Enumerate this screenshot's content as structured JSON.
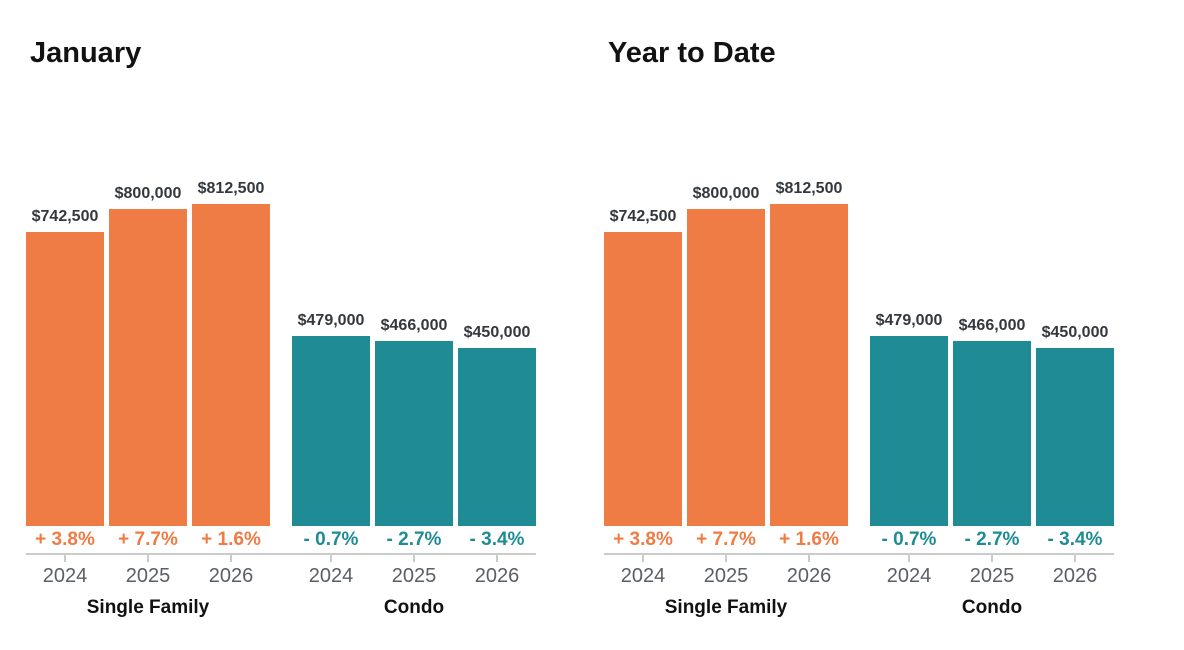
{
  "colors": {
    "single_family": "#EF7B45",
    "condo": "#1F8C95",
    "value_label_text": "#33383D",
    "year_text": "#5A5F66",
    "axis_line": "#C9CCCA",
    "title_text": "#121212"
  },
  "chart_data": [
    {
      "type": "bar",
      "title": "January",
      "ylim": [
        0,
        812500
      ],
      "grid": false,
      "legend": "none",
      "groups": [
        {
          "label": "Single Family",
          "color": "#EF7B45",
          "series": [
            {
              "year": "2024",
              "value": 742500,
              "value_label": "$742,500",
              "change_label": "+ 3.8%"
            },
            {
              "year": "2025",
              "value": 800000,
              "value_label": "$800,000",
              "change_label": "+ 7.7%"
            },
            {
              "year": "2026",
              "value": 812500,
              "value_label": "$812,500",
              "change_label": "+ 1.6%"
            }
          ]
        },
        {
          "label": "Condo",
          "color": "#1F8C95",
          "series": [
            {
              "year": "2024",
              "value": 479000,
              "value_label": "$479,000",
              "change_label": "- 0.7%"
            },
            {
              "year": "2025",
              "value": 466000,
              "value_label": "$466,000",
              "change_label": "- 2.7%"
            },
            {
              "year": "2026",
              "value": 450000,
              "value_label": "$450,000",
              "change_label": "- 3.4%"
            }
          ]
        }
      ]
    },
    {
      "type": "bar",
      "title": "Year to Date",
      "ylim": [
        0,
        812500
      ],
      "grid": false,
      "legend": "none",
      "groups": [
        {
          "label": "Single Family",
          "color": "#EF7B45",
          "series": [
            {
              "year": "2024",
              "value": 742500,
              "value_label": "$742,500",
              "change_label": "+ 3.8%"
            },
            {
              "year": "2025",
              "value": 800000,
              "value_label": "$800,000",
              "change_label": "+ 7.7%"
            },
            {
              "year": "2026",
              "value": 812500,
              "value_label": "$812,500",
              "change_label": "+ 1.6%"
            }
          ]
        },
        {
          "label": "Condo",
          "color": "#1F8C95",
          "series": [
            {
              "year": "2024",
              "value": 479000,
              "value_label": "$479,000",
              "change_label": "- 0.7%"
            },
            {
              "year": "2025",
              "value": 466000,
              "value_label": "$466,000",
              "change_label": "- 2.7%"
            },
            {
              "year": "2026",
              "value": 450000,
              "value_label": "$450,000",
              "change_label": "- 3.4%"
            }
          ]
        }
      ]
    }
  ]
}
